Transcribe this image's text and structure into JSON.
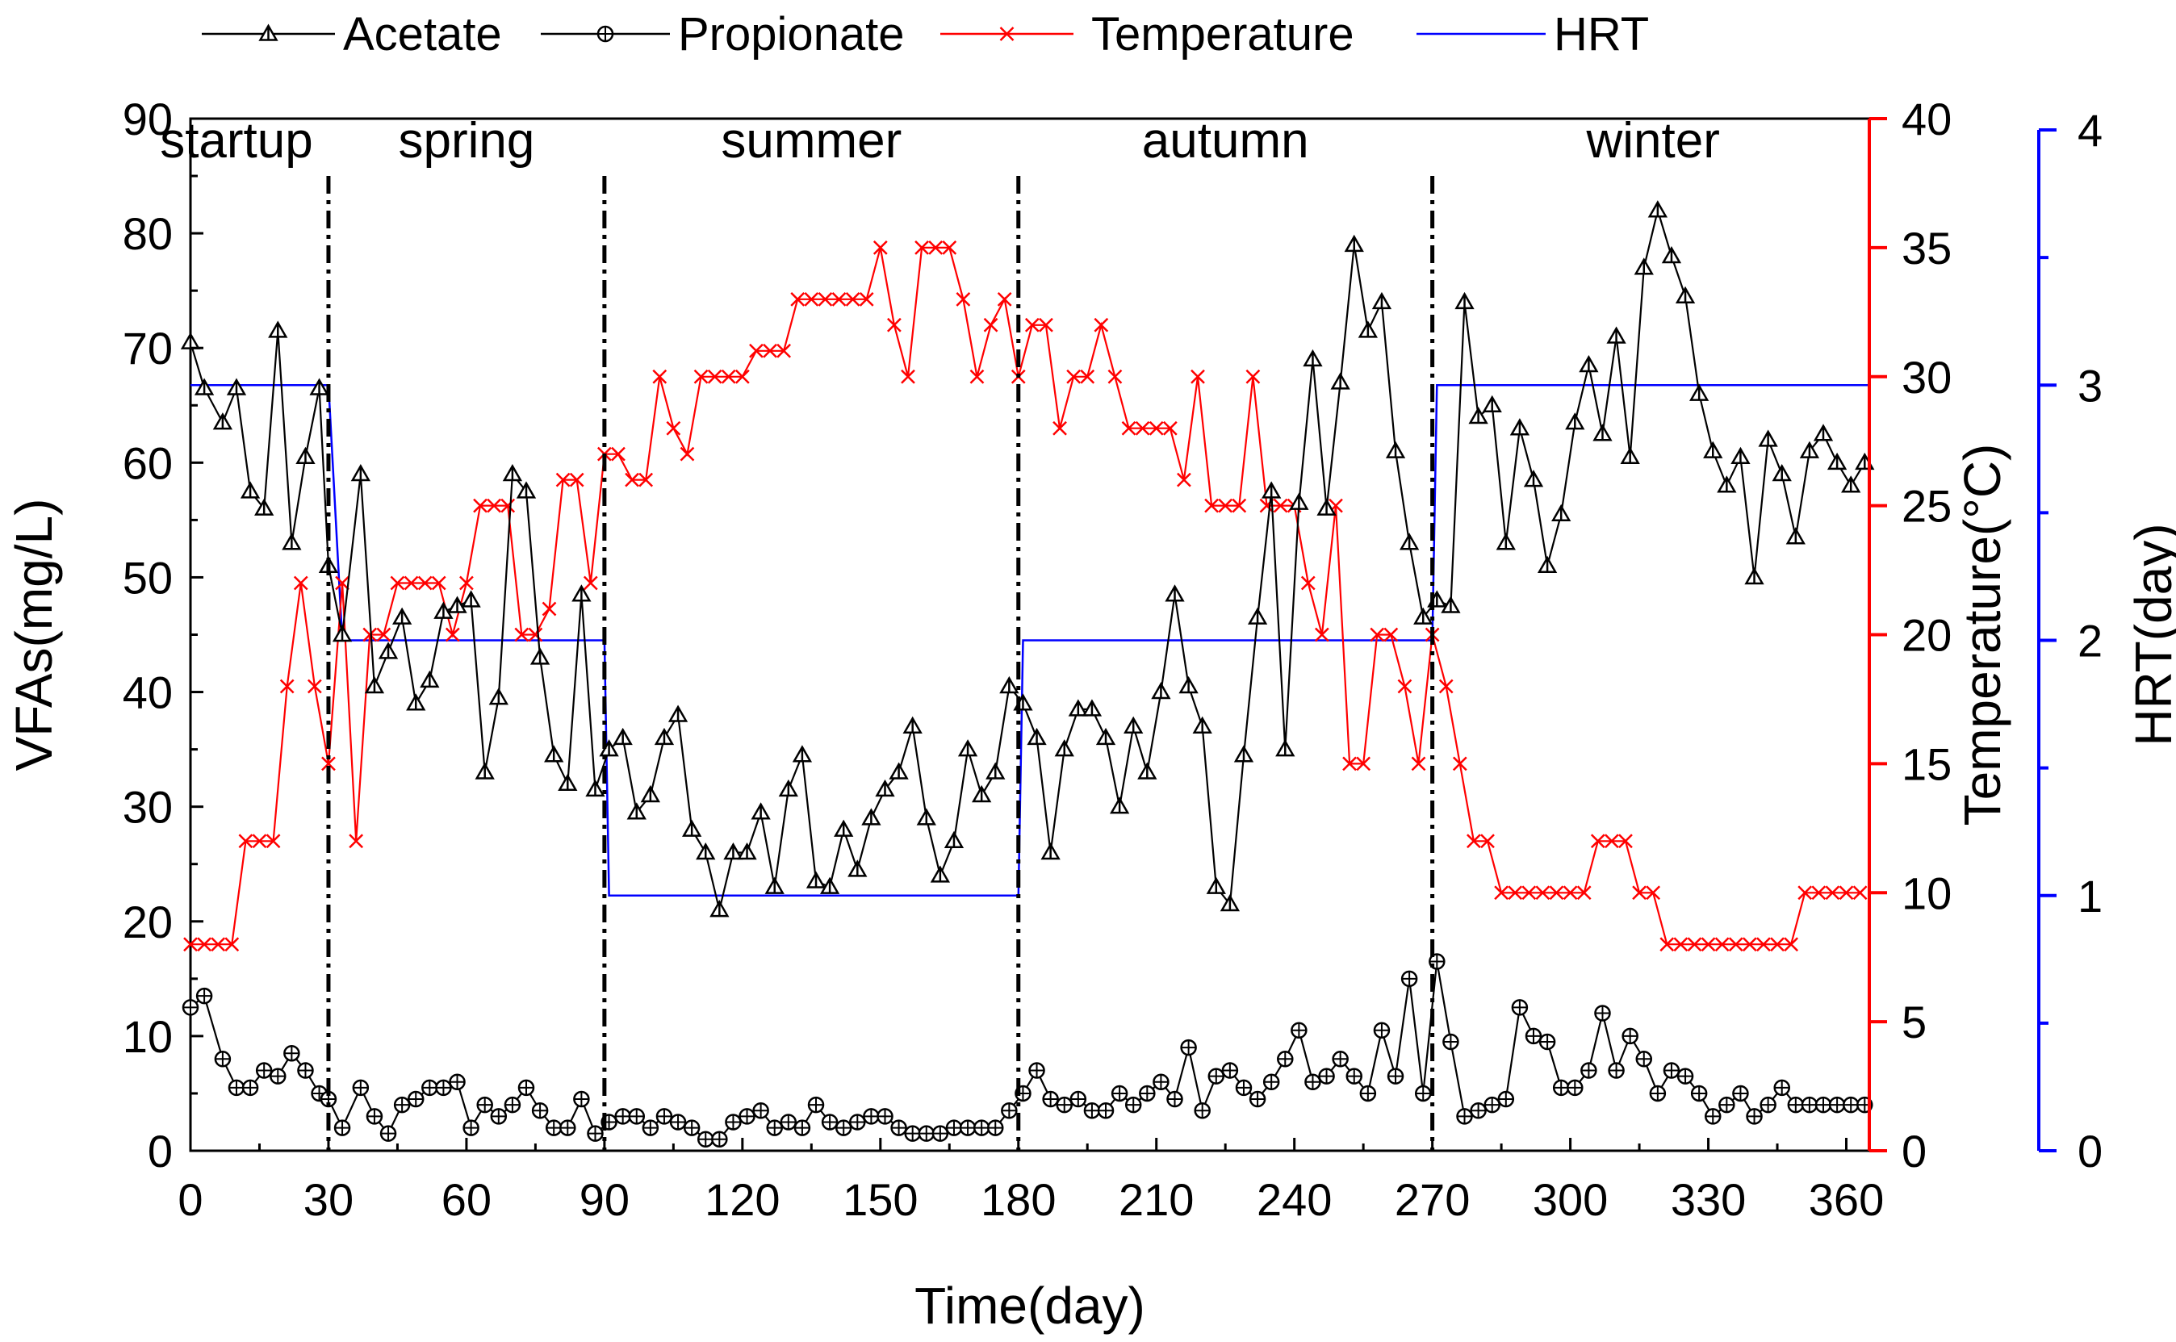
{
  "chart_data": {
    "type": "line",
    "x_axis": {
      "label": "Time(day)",
      "range": [
        0,
        365
      ],
      "ticks": [
        0,
        30,
        60,
        90,
        120,
        150,
        180,
        210,
        240,
        270,
        300,
        330,
        360
      ]
    },
    "y_axis_left": {
      "label": "VFAs(mg/L)",
      "range": [
        0,
        90
      ],
      "ticks": [
        0,
        10,
        20,
        30,
        40,
        50,
        60,
        70,
        80,
        90
      ]
    },
    "y_axis_right_1": {
      "label": "Temperature(°C)",
      "range": [
        0,
        40
      ],
      "ticks": [
        0,
        5,
        10,
        15,
        20,
        25,
        30,
        35,
        40
      ],
      "color": "#ff0000"
    },
    "y_axis_right_2": {
      "label": "HRT(day)",
      "range": [
        0,
        4
      ],
      "ticks": [
        0,
        1,
        2,
        3,
        4
      ],
      "color": "#0000ff"
    },
    "seasons": [
      {
        "label": "startup",
        "x": 10
      },
      {
        "label": "spring",
        "x": 60
      },
      {
        "label": "summer",
        "x": 135
      },
      {
        "label": "autumn",
        "x": 225
      },
      {
        "label": "winter",
        "x": 318
      }
    ],
    "phase_dividers": [
      30,
      90,
      180,
      270
    ],
    "series": [
      {
        "name": "Acetate",
        "axis": "left",
        "color": "#000000",
        "marker": "triangle",
        "x": [
          0,
          3,
          7,
          10,
          13,
          16,
          19,
          22,
          25,
          28,
          30,
          33,
          37,
          40,
          43,
          46,
          49,
          52,
          55,
          58,
          61,
          64,
          67,
          70,
          73,
          76,
          79,
          82,
          85,
          88,
          91,
          94,
          97,
          100,
          103,
          106,
          109,
          112,
          115,
          118,
          121,
          124,
          127,
          130,
          133,
          136,
          139,
          142,
          145,
          148,
          151,
          154,
          157,
          160,
          163,
          166,
          169,
          172,
          175,
          178,
          181,
          184,
          187,
          190,
          193,
          196,
          199,
          202,
          205,
          208,
          211,
          214,
          217,
          220,
          223,
          226,
          229,
          232,
          235,
          238,
          241,
          244,
          247,
          250,
          253,
          256,
          259,
          262,
          265,
          268,
          271,
          274,
          277,
          280,
          283,
          286,
          289,
          292,
          295,
          298,
          301,
          304,
          307,
          310,
          313,
          316,
          319,
          322,
          325,
          328,
          331,
          334,
          337,
          340,
          343,
          346,
          349,
          352,
          355,
          358,
          361,
          364
        ],
        "values": [
          70.5,
          66.5,
          63.5,
          66.5,
          57.5,
          56,
          71.5,
          53,
          60.5,
          66.5,
          51,
          45,
          59,
          40.5,
          43.5,
          46.5,
          39,
          41,
          47,
          47.5,
          48,
          33,
          39.5,
          59,
          57.5,
          43,
          34.5,
          32,
          48.5,
          31.5,
          35,
          36,
          29.5,
          31,
          36,
          38,
          28,
          26,
          21,
          26,
          26,
          29.5,
          23,
          31.5,
          34.5,
          23.5,
          23,
          28,
          24.5,
          29,
          31.5,
          33,
          37,
          29,
          24,
          27,
          35,
          31,
          33,
          40.5,
          39,
          36,
          26,
          35,
          38.5,
          38.5,
          36,
          30,
          37,
          33,
          40,
          48.5,
          40.5,
          37,
          23,
          21.5,
          34.5,
          46.5,
          57.5,
          35,
          56.5,
          69,
          56,
          67,
          79,
          71.5,
          74,
          61,
          53,
          46.5,
          48,
          47.5,
          74,
          64,
          65,
          53,
          63,
          58.5,
          51,
          55.5,
          63.5,
          68.5,
          62.5,
          71,
          60.5,
          77,
          82,
          78,
          74.5,
          66,
          61,
          58,
          60.5,
          50,
          62,
          59,
          53.5,
          61,
          62.5,
          60,
          58,
          60
        ]
      },
      {
        "name": "Propionate",
        "axis": "left",
        "color": "#000000",
        "marker": "circle-plus",
        "x": [
          0,
          3,
          7,
          10,
          13,
          16,
          19,
          22,
          25,
          28,
          30,
          33,
          37,
          40,
          43,
          46,
          49,
          52,
          55,
          58,
          61,
          64,
          67,
          70,
          73,
          76,
          79,
          82,
          85,
          88,
          91,
          94,
          97,
          100,
          103,
          106,
          109,
          112,
          115,
          118,
          121,
          124,
          127,
          130,
          133,
          136,
          139,
          142,
          145,
          148,
          151,
          154,
          157,
          160,
          163,
          166,
          169,
          172,
          175,
          178,
          181,
          184,
          187,
          190,
          193,
          196,
          199,
          202,
          205,
          208,
          211,
          214,
          217,
          220,
          223,
          226,
          229,
          232,
          235,
          238,
          241,
          244,
          247,
          250,
          253,
          256,
          259,
          262,
          265,
          268,
          271,
          274,
          277,
          280,
          283,
          286,
          289,
          292,
          295,
          298,
          301,
          304,
          307,
          310,
          313,
          316,
          319,
          322,
          325,
          328,
          331,
          334,
          337,
          340,
          343,
          346,
          349,
          352,
          355,
          358,
          361,
          364
        ],
        "values": [
          12.5,
          13.5,
          8,
          5.5,
          5.5,
          7,
          6.5,
          8.5,
          7,
          5,
          4.5,
          2,
          5.5,
          3,
          1.5,
          4,
          4.5,
          5.5,
          5.5,
          6,
          2,
          4,
          3,
          4,
          5.5,
          3.5,
          2,
          2,
          4.5,
          1.5,
          2.5,
          3,
          3,
          2,
          3,
          2.5,
          2,
          1,
          1,
          2.5,
          3,
          3.5,
          2,
          2.5,
          2,
          4,
          2.5,
          2,
          2.5,
          3,
          3,
          2,
          1.5,
          1.5,
          1.5,
          2,
          2,
          2,
          2,
          3.5,
          5,
          7,
          4.5,
          4,
          4.5,
          3.5,
          3.5,
          5,
          4,
          5,
          6,
          4.5,
          9,
          3.5,
          6.5,
          7,
          5.5,
          4.5,
          6,
          8,
          10.5,
          6,
          6.5,
          8,
          6.5,
          5,
          10.5,
          6.5,
          15,
          5,
          16.5,
          9.5,
          3,
          3.5,
          4,
          4.5,
          12.5,
          10,
          9.5,
          5.5,
          5.5,
          7,
          12,
          7,
          10,
          8,
          5,
          7,
          6.5,
          5,
          3,
          4,
          5,
          3,
          4,
          5.5,
          4,
          4,
          4,
          4,
          4,
          4
        ]
      },
      {
        "name": "Temperature",
        "axis": "right_1",
        "color": "#ff0000",
        "marker": "cross",
        "x": [
          0,
          3,
          6,
          9,
          12,
          15,
          18,
          21,
          24,
          27,
          30,
          33,
          36,
          39,
          42,
          45,
          48,
          51,
          54,
          57,
          60,
          63,
          66,
          69,
          72,
          75,
          78,
          81,
          84,
          87,
          90,
          93,
          96,
          99,
          102,
          105,
          108,
          111,
          114,
          117,
          120,
          123,
          126,
          129,
          132,
          135,
          138,
          141,
          144,
          147,
          150,
          153,
          156,
          159,
          162,
          165,
          168,
          171,
          174,
          177,
          180,
          183,
          186,
          189,
          192,
          195,
          198,
          201,
          204,
          207,
          210,
          213,
          216,
          219,
          222,
          225,
          228,
          231,
          234,
          237,
          240,
          243,
          246,
          249,
          252,
          255,
          258,
          261,
          264,
          267,
          270,
          273,
          276,
          279,
          282,
          285,
          288,
          291,
          294,
          297,
          300,
          303,
          306,
          309,
          312,
          315,
          318,
          321,
          324,
          327,
          330,
          333,
          336,
          339,
          342,
          345,
          348,
          351,
          354,
          357,
          360,
          363
        ],
        "values": [
          8,
          8,
          8,
          8,
          12,
          12,
          12,
          18,
          22,
          18,
          15,
          22,
          12,
          20,
          20,
          22,
          22,
          22,
          22,
          20,
          22,
          25,
          25,
          25,
          20,
          20,
          21,
          26,
          26,
          22,
          27,
          27,
          26,
          26,
          30,
          28,
          27,
          30,
          30,
          30,
          30,
          31,
          31,
          31,
          33,
          33,
          33,
          33,
          33,
          33,
          35,
          32,
          30,
          35,
          35,
          35,
          33,
          30,
          32,
          33,
          30,
          32,
          32,
          28,
          30,
          30,
          32,
          30,
          28,
          28,
          28,
          28,
          26,
          30,
          25,
          25,
          25,
          30,
          25,
          25,
          25,
          22,
          20,
          25,
          15,
          15,
          20,
          20,
          18,
          15,
          20,
          18,
          15,
          12,
          12,
          10,
          10,
          10,
          10,
          10,
          10,
          10,
          12,
          12,
          12,
          10,
          10,
          8,
          8,
          8,
          8,
          8,
          8,
          8,
          8,
          8,
          8,
          10,
          10,
          10,
          10,
          10
        ]
      },
      {
        "name": "HRT",
        "axis": "right_2",
        "color": "#0000ff",
        "marker": "none",
        "x": [
          0,
          30,
          33,
          90,
          91,
          180,
          181,
          270,
          271,
          365
        ],
        "values": [
          3,
          3,
          2,
          2,
          1,
          1,
          2,
          2,
          3,
          3
        ]
      }
    ]
  }
}
